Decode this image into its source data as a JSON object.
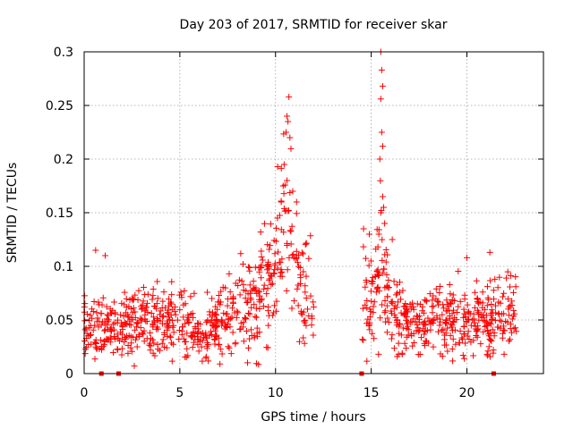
{
  "chart_data": {
    "type": "scatter",
    "title": "Day 203 of 2017, SRMTID for receiver skar",
    "xlabel": "GPS time / hours",
    "ylabel": "SRMTID / TECUs",
    "xlim": [
      0,
      24
    ],
    "ylim": [
      0,
      0.3
    ],
    "xticks": [
      0,
      5,
      10,
      15,
      20
    ],
    "xtick_labels": [
      "0",
      "5",
      "10",
      "15",
      "20"
    ],
    "yticks": [
      0,
      0.05,
      0.1,
      0.15,
      0.2,
      0.25,
      0.3
    ],
    "ytick_labels": [
      "0",
      "0.05",
      "0.1",
      "0.15",
      "0.2",
      "0.25",
      "0.3"
    ],
    "grid": true,
    "marker": "plus",
    "color": "#ff0000",
    "series": [
      {
        "name": "SRMTID",
        "segments": [
          {
            "x_start": 0.0,
            "x_end": 12.0,
            "profile": [
              [
                0,
                0.045
              ],
              [
                1,
                0.042
              ],
              [
                2,
                0.045
              ],
              [
                3,
                0.048
              ],
              [
                4,
                0.052
              ],
              [
                5,
                0.05
              ],
              [
                6,
                0.035
              ],
              [
                7,
                0.048
              ],
              [
                8,
                0.062
              ],
              [
                9,
                0.068
              ],
              [
                9.8,
                0.085
              ],
              [
                10.4,
                0.13
              ],
              [
                10.8,
                0.12
              ],
              [
                11.3,
                0.085
              ],
              [
                12,
                0.065
              ]
            ]
          },
          {
            "x_start": 14.5,
            "x_end": 22.6,
            "profile": [
              [
                14.5,
                0.07
              ],
              [
                15,
                0.06
              ],
              [
                15.5,
                0.1
              ],
              [
                16,
                0.06
              ],
              [
                17,
                0.045
              ],
              [
                18,
                0.05
              ],
              [
                19,
                0.05
              ],
              [
                20,
                0.05
              ],
              [
                21,
                0.05
              ],
              [
                22,
                0.055
              ],
              [
                22.6,
                0.055
              ]
            ]
          }
        ],
        "highlights": [
          {
            "x": 0.6,
            "y": 0.115
          },
          {
            "x": 1.1,
            "y": 0.11
          },
          {
            "x": 10.1,
            "y": 0.145
          },
          {
            "x": 10.3,
            "y": 0.16
          },
          {
            "x": 10.45,
            "y": 0.195
          },
          {
            "x": 10.55,
            "y": 0.225
          },
          {
            "x": 10.6,
            "y": 0.24
          },
          {
            "x": 10.65,
            "y": 0.235
          },
          {
            "x": 10.7,
            "y": 0.258
          },
          {
            "x": 10.75,
            "y": 0.22
          },
          {
            "x": 10.6,
            "y": 0.18
          },
          {
            "x": 10.9,
            "y": 0.17
          },
          {
            "x": 11.1,
            "y": 0.16
          },
          {
            "x": 10.4,
            "y": 0.175
          },
          {
            "x": 14.6,
            "y": 0.135
          },
          {
            "x": 14.9,
            "y": 0.13
          },
          {
            "x": 15.5,
            "y": 0.3
          },
          {
            "x": 15.55,
            "y": 0.283
          },
          {
            "x": 15.6,
            "y": 0.268
          },
          {
            "x": 15.5,
            "y": 0.256
          },
          {
            "x": 15.55,
            "y": 0.225
          },
          {
            "x": 15.6,
            "y": 0.212
          },
          {
            "x": 15.45,
            "y": 0.2
          },
          {
            "x": 15.6,
            "y": 0.165
          },
          {
            "x": 15.65,
            "y": 0.155
          },
          {
            "x": 15.5,
            "y": 0.15
          },
          {
            "x": 15.7,
            "y": 0.14
          },
          {
            "x": 15.4,
            "y": 0.13
          },
          {
            "x": 16.1,
            "y": 0.125
          },
          {
            "x": 20.0,
            "y": 0.108
          },
          {
            "x": 21.2,
            "y": 0.113
          }
        ],
        "baseline_markers": [
          0.9,
          1.8,
          14.5,
          21.4
        ]
      }
    ]
  }
}
